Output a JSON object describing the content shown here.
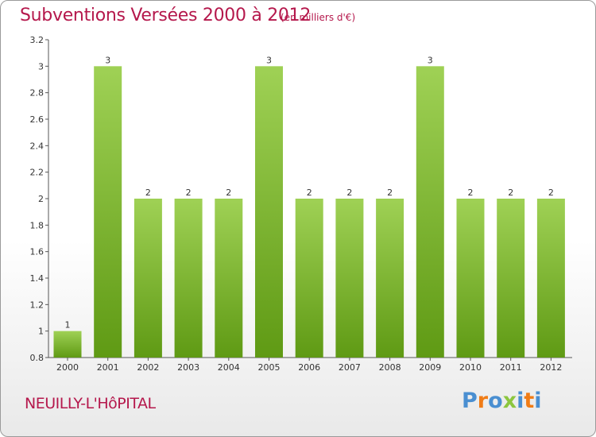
{
  "header": {
    "title": "Subventions Versées 2000 à 2012",
    "unit": "(en milliers d'€)"
  },
  "footer": {
    "commune": "NEUILLY-L'HôPITAL",
    "logo": [
      "P",
      "r",
      "o",
      "x",
      "i",
      "t",
      "i"
    ]
  },
  "colors": {
    "brand": "#b5184c",
    "bar_top": "#9fd155",
    "bar_bottom": "#5f9a14",
    "logo": [
      "#4a8fd1",
      "#f07c16",
      "#4a8fd1",
      "#8cc63f",
      "#4a8fd1",
      "#f07c16",
      "#4a8fd1"
    ]
  },
  "chart_data": {
    "type": "bar",
    "title": "Subventions Versées 2000 à 2012",
    "categories": [
      "2000",
      "2001",
      "2002",
      "2003",
      "2004",
      "2005",
      "2006",
      "2007",
      "2008",
      "2009",
      "2010",
      "2011",
      "2012"
    ],
    "values": [
      1,
      3,
      2,
      2,
      2,
      3,
      2,
      2,
      2,
      3,
      2,
      2,
      2
    ],
    "data_labels": [
      "1",
      "3",
      "2",
      "2",
      "2",
      "3",
      "2",
      "2",
      "2",
      "3",
      "2",
      "2",
      "2"
    ],
    "ylim": [
      0.8,
      3.2
    ],
    "yticks": [
      0.8,
      1,
      1.2,
      1.4,
      1.6,
      1.8,
      2,
      2.2,
      2.4,
      2.6,
      2.8,
      3,
      3.2
    ],
    "ytick_labels": [
      "0.8",
      "1",
      "1.2",
      "1.4",
      "1.6",
      "1.8",
      "2",
      "2.2",
      "2.4",
      "2.6",
      "2.8",
      "3",
      "3.2"
    ],
    "grid": false,
    "legend": "none"
  }
}
